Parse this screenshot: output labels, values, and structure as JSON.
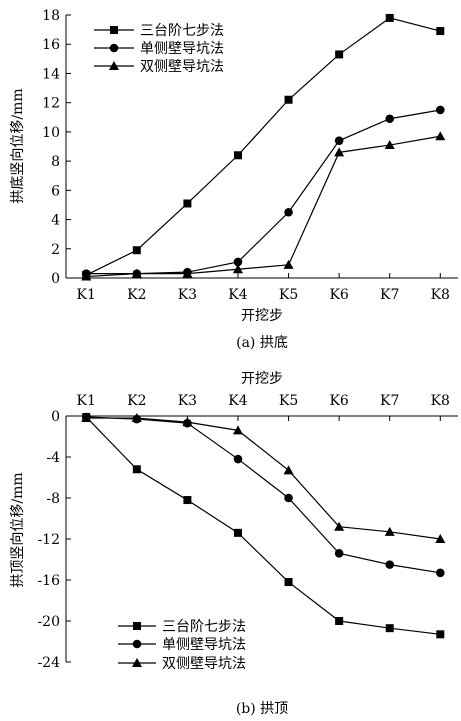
{
  "chart_data": [
    {
      "type": "line",
      "caption": "(a) 拱底",
      "xlabel": "开挖步",
      "ylabel": "拱底竖向位移/mm",
      "categories": [
        "K1",
        "K2",
        "K3",
        "K4",
        "K5",
        "K6",
        "K7",
        "K8"
      ],
      "ylim": [
        0,
        18
      ],
      "yticks": [
        0,
        2,
        4,
        6,
        8,
        10,
        12,
        14,
        16,
        18
      ],
      "legend_position": "top-left",
      "grid": false,
      "series": [
        {
          "name": "三台阶七步法",
          "marker": "square",
          "values": [
            0.2,
            1.9,
            5.1,
            8.4,
            12.2,
            15.3,
            17.8,
            16.9
          ]
        },
        {
          "name": "单侧壁导坑法",
          "marker": "circle",
          "values": [
            0.3,
            0.3,
            0.4,
            1.1,
            4.5,
            9.4,
            10.9,
            11.5
          ]
        },
        {
          "name": "双侧壁导坑法",
          "marker": "triangle",
          "values": [
            0.1,
            0.3,
            0.3,
            0.6,
            0.9,
            8.6,
            9.1,
            9.7
          ]
        }
      ]
    },
    {
      "type": "line",
      "caption": "(b) 拱顶",
      "xlabel": "开挖步",
      "ylabel": "拱顶竖向位移/mm",
      "categories": [
        "K1",
        "K2",
        "K3",
        "K4",
        "K5",
        "K6",
        "K7",
        "K8"
      ],
      "ylim": [
        -24,
        0
      ],
      "yticks": [
        0,
        -4,
        -8,
        -12,
        -16,
        -20,
        -24
      ],
      "x_axis_position": "top",
      "legend_position": "bottom-left",
      "grid": false,
      "series": [
        {
          "name": "三台阶七步法",
          "marker": "square",
          "values": [
            -0.1,
            -5.2,
            -8.2,
            -11.4,
            -16.2,
            -20.0,
            -20.7,
            -21.3
          ]
        },
        {
          "name": "单侧壁导坑法",
          "marker": "circle",
          "values": [
            -0.1,
            -0.3,
            -0.7,
            -4.2,
            -8.0,
            -13.4,
            -14.5,
            -15.3
          ]
        },
        {
          "name": "双侧壁导坑法",
          "marker": "triangle",
          "values": [
            -0.2,
            -0.2,
            -0.6,
            -1.4,
            -5.3,
            -10.8,
            -11.3,
            -12.0
          ]
        }
      ]
    }
  ]
}
